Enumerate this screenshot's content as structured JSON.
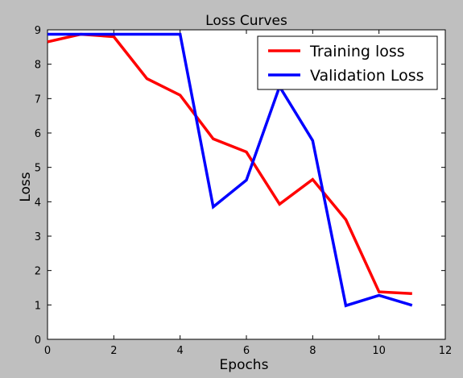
{
  "chart_data": {
    "type": "line",
    "title": "Loss Curves",
    "xlabel": "Epochs",
    "ylabel": "Loss",
    "xlim": [
      0,
      12
    ],
    "ylim": [
      0,
      9
    ],
    "xticks": [
      0,
      2,
      4,
      6,
      8,
      10,
      12
    ],
    "yticks": [
      0,
      1,
      2,
      3,
      4,
      5,
      6,
      7,
      8,
      9
    ],
    "grid": false,
    "legend_position": "top-right",
    "series": [
      {
        "name": "Training loss",
        "color": "#ff0000",
        "x": [
          0,
          1,
          2,
          3,
          4,
          5,
          6,
          7,
          8,
          9,
          10,
          11
        ],
        "values": [
          8.65,
          8.87,
          8.8,
          7.58,
          7.1,
          5.83,
          5.45,
          3.93,
          4.65,
          3.48,
          1.38,
          1.33
        ]
      },
      {
        "name": "Validation Loss",
        "color": "#0000ff",
        "x": [
          0,
          1,
          2,
          3,
          4,
          5,
          6,
          7,
          8,
          9,
          10,
          11
        ],
        "values": [
          8.87,
          8.87,
          8.87,
          8.87,
          8.87,
          3.85,
          4.63,
          7.35,
          5.78,
          0.98,
          1.28,
          0.99
        ]
      }
    ]
  }
}
